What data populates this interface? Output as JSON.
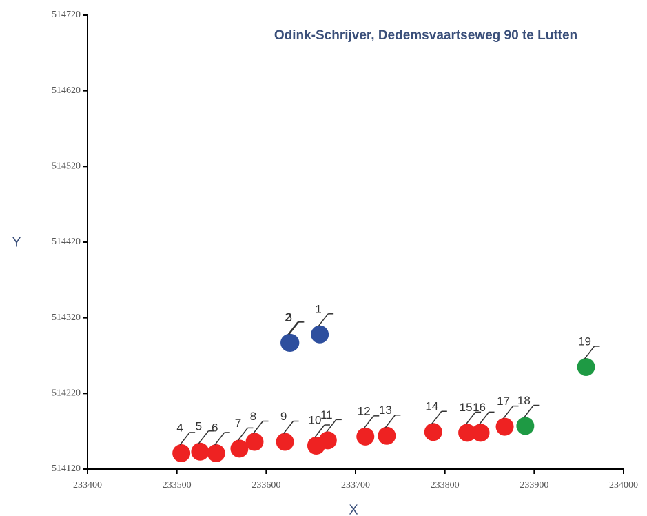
{
  "chart_data": {
    "type": "scatter",
    "title": "Odink-Schrijver, Dedemsvaartseweg 90 te Lutten",
    "xlabel": "X",
    "ylabel": "Y",
    "xlim": [
      233400,
      234000
    ],
    "xticks": [
      233400,
      233500,
      233600,
      233700,
      233800,
      233900,
      234000
    ],
    "ylim": [
      514120,
      514720
    ],
    "yticks": [
      514120,
      514220,
      514320,
      514420,
      514520,
      514620,
      514720
    ],
    "series": [
      {
        "color": "#2e4f9e",
        "x": [
          233660,
          233626,
          233627
        ],
        "y": [
          514298,
          514287,
          514287
        ],
        "labels": [
          "1",
          "2",
          "3"
        ]
      },
      {
        "color": "#ee2222",
        "x": [
          233505,
          233526,
          233544,
          233570,
          233587,
          233621,
          233656,
          233669,
          233711,
          233735,
          233787,
          233825,
          233840,
          233867
        ],
        "y": [
          514141,
          514143,
          514141,
          514147,
          514156,
          514156,
          514151,
          514158,
          514163,
          514164,
          514169,
          514168,
          514168,
          514176
        ],
        "labels": [
          "4",
          "5",
          "6",
          "7",
          "8",
          "9",
          "10",
          "11",
          "12",
          "13",
          "14",
          "15",
          "16",
          "17"
        ]
      },
      {
        "color": "#1e9a44",
        "x": [
          233890,
          233958
        ],
        "y": [
          514177,
          514255
        ],
        "labels": [
          "18",
          "19"
        ]
      }
    ]
  }
}
